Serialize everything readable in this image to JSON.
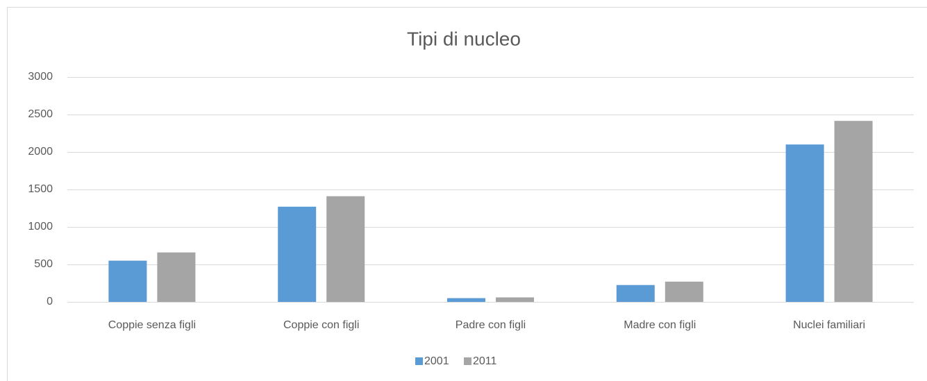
{
  "chart_data": {
    "type": "bar",
    "title": "Tipi di nucleo",
    "categories": [
      "Coppie senza figli",
      "Coppie con figli",
      "Padre con figli",
      "Madre con figli",
      "Nuclei familiari"
    ],
    "series": [
      {
        "name": "2001",
        "color": "#5b9bd5",
        "values": [
          550,
          1270,
          50,
          225,
          2100
        ]
      },
      {
        "name": "2011",
        "color": "#a5a5a5",
        "values": [
          660,
          1410,
          60,
          270,
          2415
        ]
      }
    ],
    "ylim": [
      0,
      3000
    ],
    "yticks": [
      0,
      500,
      1000,
      1500,
      2000,
      2500,
      3000
    ],
    "grid": true,
    "legend": "bottom"
  }
}
